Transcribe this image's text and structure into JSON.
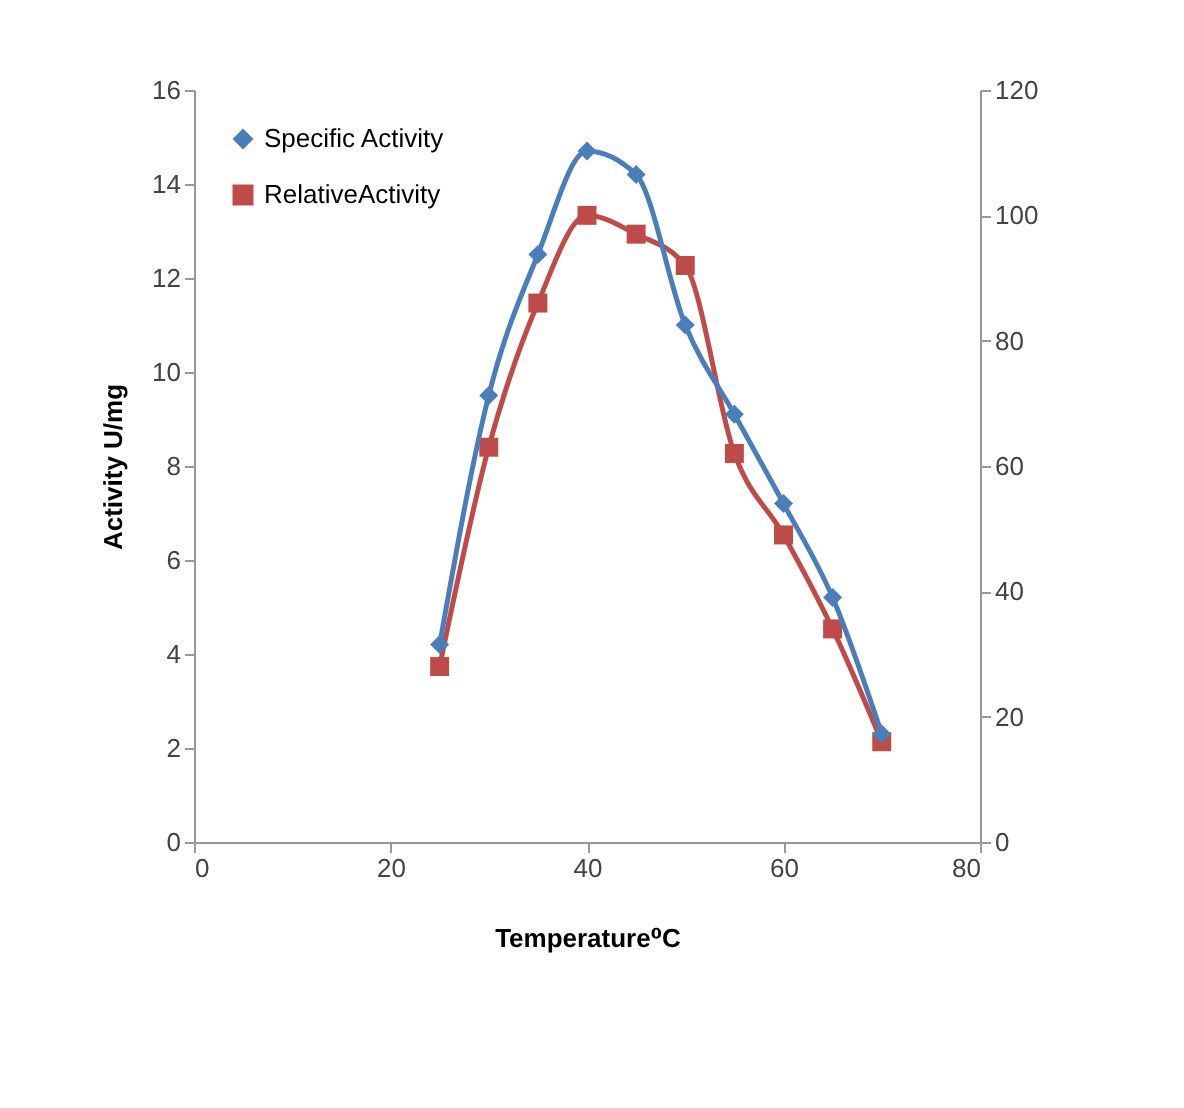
{
  "chart_data": {
    "type": "line",
    "xlabel": "Temperature⁰C",
    "ylabel": "Activity U/mg",
    "x": [
      25,
      30,
      35,
      40,
      45,
      50,
      55,
      60,
      65,
      70
    ],
    "series": [
      {
        "name": "Specific Activity",
        "color": "#4a7ebb",
        "marker": "diamond",
        "values": [
          4.2,
          9.5,
          12.5,
          14.7,
          14.2,
          11.0,
          9.1,
          7.2,
          5.2,
          2.3
        ]
      },
      {
        "name": "RelativeActivity",
        "color": "#be4b48",
        "marker": "square",
        "axis": "y2",
        "values": [
          28,
          63,
          86,
          100,
          97,
          92,
          62,
          49,
          34,
          16
        ]
      }
    ],
    "xlim": [
      0,
      80
    ],
    "xticks": [
      0,
      20,
      40,
      60,
      80
    ],
    "ylim": [
      0,
      16
    ],
    "yticks": [
      0,
      2,
      4,
      6,
      8,
      10,
      12,
      14,
      16
    ],
    "y2lim": [
      0,
      120
    ],
    "y2ticks": [
      0,
      20,
      40,
      60,
      80,
      100,
      120
    ],
    "grid": false,
    "legend": "top left",
    "line_style": "solid"
  }
}
